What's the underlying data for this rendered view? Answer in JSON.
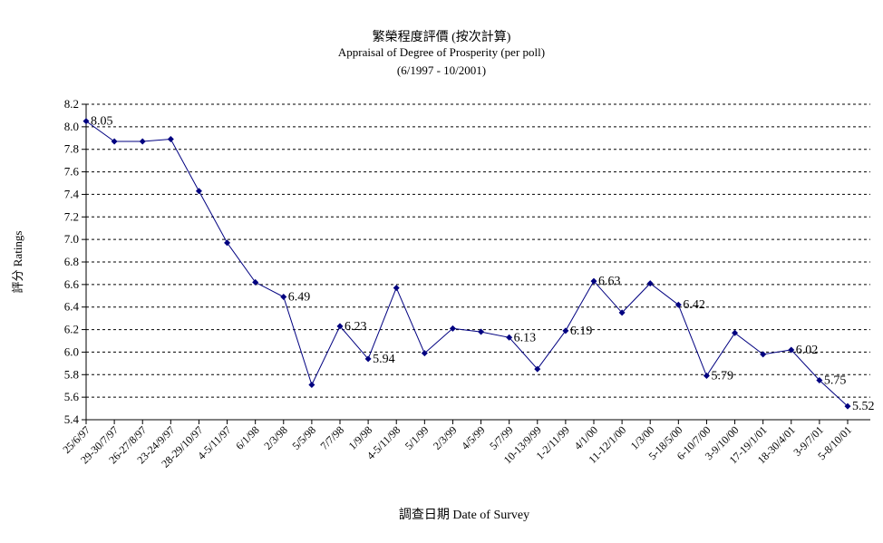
{
  "chart_data": {
    "type": "line",
    "title": "繁榮程度評價 (按次計算)",
    "subtitle": "Appraisal of Degree of Prosperity (per poll)",
    "period": "(6/1997 - 10/2001)",
    "xlabel": "調查日期 Date of Survey",
    "ylabel": "評分 Ratings",
    "ylim": [
      5.4,
      8.2
    ],
    "yticks": [
      "8.2",
      "8.0",
      "7.8",
      "7.6",
      "7.4",
      "7.2",
      "7.0",
      "6.8",
      "6.6",
      "6.4",
      "6.2",
      "6.0",
      "5.8",
      "5.6",
      "5.4"
    ],
    "grid": true,
    "color": "#000080",
    "categories": [
      "25/6/97",
      "29-30/7/97",
      "26-27/8/97",
      "23-24/9/97",
      "28-29/10/97",
      "4-5/11/97",
      "6/1/98",
      "2/3/98",
      "5/5/98",
      "7/7/98",
      "1/9/98",
      "4-5/11/98",
      "5/1/99",
      "2/3/99",
      "4/5/99",
      "5/7/99",
      "10-13/9/99",
      "1-2/11/99",
      "4/1/00",
      "11-12/1/00",
      "1/3/00",
      "5-18/5/00",
      "6-10/7/00",
      "3-9/10/00",
      "17-19/1/01",
      "18-30/4/01",
      "3-9/7/01",
      "5-8/10/01"
    ],
    "series": [
      {
        "values": [
          8.05,
          7.87,
          7.87,
          7.89,
          7.43,
          6.97,
          6.62,
          6.49,
          5.71,
          6.23,
          5.94,
          6.57,
          5.99,
          6.21,
          6.18,
          6.13,
          5.85,
          6.19,
          6.63,
          6.35,
          6.61,
          6.42,
          5.79,
          6.17,
          5.98,
          6.02,
          5.75,
          5.52
        ]
      }
    ],
    "data_labels": [
      {
        "index": 0,
        "text": "8.05"
      },
      {
        "index": 7,
        "text": "6.49"
      },
      {
        "index": 9,
        "text": "6.23"
      },
      {
        "index": 10,
        "text": "5.94"
      },
      {
        "index": 15,
        "text": "6.13"
      },
      {
        "index": 17,
        "text": "6.19"
      },
      {
        "index": 18,
        "text": "6.63"
      },
      {
        "index": 21,
        "text": "6.42"
      },
      {
        "index": 22,
        "text": "5.79"
      },
      {
        "index": 25,
        "text": "6.02"
      },
      {
        "index": 26,
        "text": "5.75"
      },
      {
        "index": 27,
        "text": "5.52"
      }
    ]
  }
}
